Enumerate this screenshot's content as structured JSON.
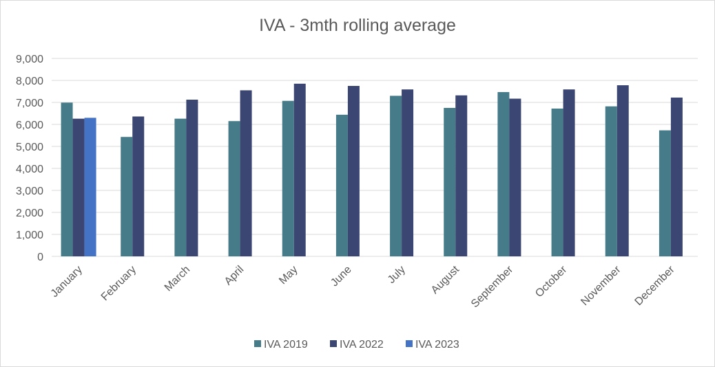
{
  "chart_data": {
    "type": "bar",
    "title": "IVA - 3mth rolling average",
    "xlabel": "",
    "ylabel": "",
    "ylim": [
      0,
      9000
    ],
    "yticks": [
      "0",
      "1,000",
      "2,000",
      "3,000",
      "4,000",
      "5,000",
      "6,000",
      "7,000",
      "8,000",
      "9,000"
    ],
    "grid": true,
    "legend_position": "bottom",
    "categories": [
      "January",
      "February",
      "March",
      "April",
      "May",
      "June",
      "July",
      "August",
      "September",
      "October",
      "November",
      "December"
    ],
    "series": [
      {
        "name": "IVA 2019",
        "color": "#467B8A",
        "values": [
          6990,
          5430,
          6260,
          6150,
          7070,
          6440,
          7300,
          6750,
          7470,
          6720,
          6820,
          5730
        ]
      },
      {
        "name": "IVA 2022",
        "color": "#3C4673",
        "values": [
          6260,
          6360,
          7125,
          7550,
          7850,
          7750,
          7590,
          7320,
          7170,
          7590,
          7780,
          7220
        ]
      },
      {
        "name": "IVA 2023",
        "color": "#4472C4",
        "values": [
          6300,
          null,
          null,
          null,
          null,
          null,
          null,
          null,
          null,
          null,
          null,
          null
        ]
      }
    ]
  }
}
